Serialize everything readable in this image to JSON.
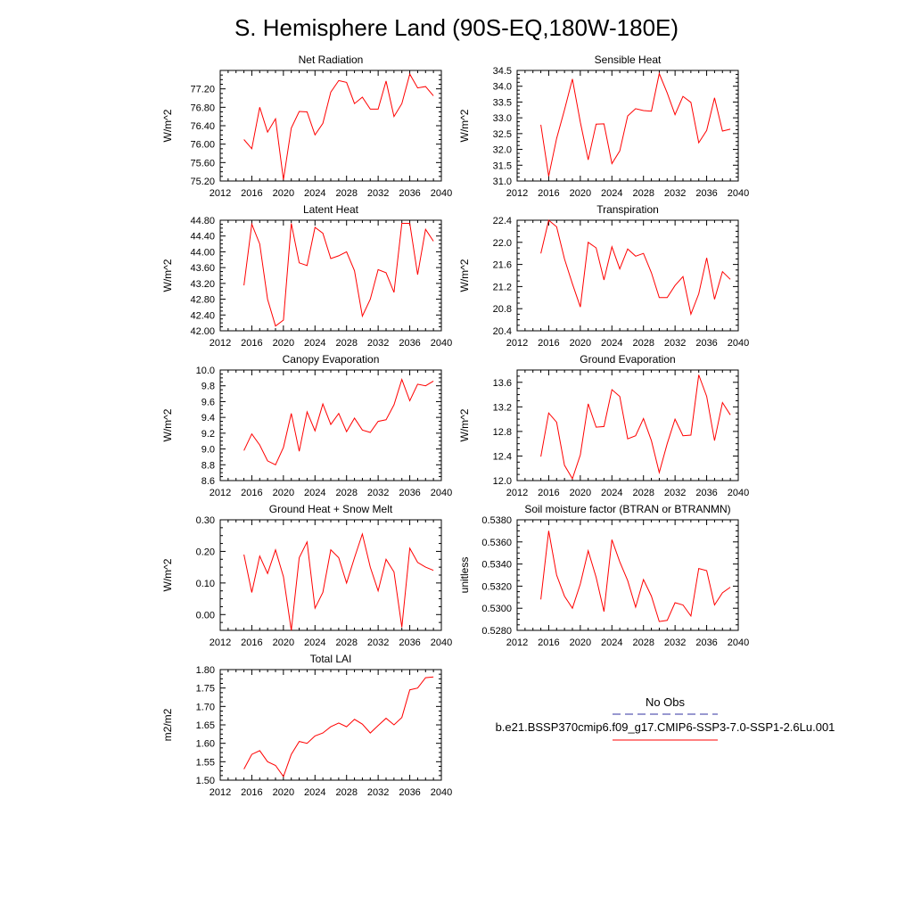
{
  "figure": {
    "title": "S. Hemisphere Land (90S-EQ,180W-180E)"
  },
  "legend": {
    "obs_label": "No Obs",
    "model_label": "b.e21.BSSP370cmip6.f09_g17.CMIP6-SSP3-7.0-SSP1-2.6Lu.001",
    "obs_color": "#3030a0",
    "model_color": "#ff0000"
  },
  "chart_data": [
    {
      "type": "line",
      "title": "Net Radiation",
      "ylabel": "W/m^2",
      "xlim": [
        2012,
        2040
      ],
      "xticks": [
        "2012",
        "2016",
        "2020",
        "2024",
        "2028",
        "2032",
        "2036",
        "2040"
      ],
      "ylim": [
        75.2,
        77.6
      ],
      "yticks": [
        "75.20",
        "75.60",
        "76.00",
        "76.40",
        "76.80",
        "77.20"
      ],
      "x": [
        2015,
        2016,
        2017,
        2018,
        2019,
        2020,
        2021,
        2022,
        2023,
        2024,
        2025,
        2026,
        2027,
        2028,
        2029,
        2030,
        2031,
        2032,
        2033,
        2034,
        2035,
        2036,
        2037,
        2038,
        2039
      ],
      "values": [
        76.1,
        75.9,
        76.8,
        76.26,
        76.55,
        75.23,
        76.35,
        76.71,
        76.7,
        76.2,
        76.45,
        77.13,
        77.38,
        77.34,
        76.88,
        77.02,
        76.76,
        76.76,
        77.37,
        76.6,
        76.88,
        77.52,
        77.22,
        77.25,
        77.05
      ]
    },
    {
      "type": "line",
      "title": "Sensible Heat",
      "ylabel": "W/m^2",
      "xlim": [
        2012,
        2040
      ],
      "xticks": [
        "2012",
        "2016",
        "2020",
        "2024",
        "2028",
        "2032",
        "2036",
        "2040"
      ],
      "ylim": [
        31.0,
        34.5
      ],
      "yticks": [
        "31.0",
        "31.5",
        "32.0",
        "32.5",
        "33.0",
        "33.5",
        "34.0",
        "34.5"
      ],
      "x": [
        2015,
        2016,
        2017,
        2018,
        2019,
        2020,
        2021,
        2022,
        2023,
        2024,
        2025,
        2026,
        2027,
        2028,
        2029,
        2030,
        2031,
        2032,
        2033,
        2034,
        2035,
        2036,
        2037,
        2038,
        2039
      ],
      "values": [
        32.78,
        31.15,
        32.35,
        33.25,
        34.23,
        32.86,
        31.67,
        32.8,
        32.81,
        31.55,
        31.95,
        33.06,
        33.29,
        33.23,
        33.21,
        34.4,
        33.79,
        33.1,
        33.68,
        33.49,
        32.21,
        32.6,
        33.63,
        32.58,
        32.64
      ]
    },
    {
      "type": "line",
      "title": "Latent Heat",
      "ylabel": "W/m^2",
      "xlim": [
        2012,
        2040
      ],
      "xticks": [
        "2012",
        "2016",
        "2020",
        "2024",
        "2028",
        "2032",
        "2036",
        "2040"
      ],
      "ylim": [
        42.0,
        44.8
      ],
      "yticks": [
        "42.00",
        "42.40",
        "42.80",
        "43.20",
        "43.60",
        "44.00",
        "44.40",
        "44.80"
      ],
      "x": [
        2015,
        2016,
        2017,
        2018,
        2019,
        2020,
        2021,
        2022,
        2023,
        2024,
        2025,
        2026,
        2027,
        2028,
        2029,
        2030,
        2031,
        2032,
        2033,
        2034,
        2035,
        2036,
        2037,
        2038,
        2039
      ],
      "values": [
        43.15,
        44.7,
        44.2,
        42.8,
        42.12,
        42.27,
        44.72,
        43.72,
        43.65,
        44.62,
        44.47,
        43.83,
        43.9,
        44.0,
        43.52,
        42.37,
        42.8,
        43.55,
        43.47,
        42.97,
        44.72,
        44.72,
        43.42,
        44.57,
        44.27
      ]
    },
    {
      "type": "line",
      "title": "Transpiration",
      "ylabel": "W/m^2",
      "xlim": [
        2012,
        2040
      ],
      "xticks": [
        "2012",
        "2016",
        "2020",
        "2024",
        "2028",
        "2032",
        "2036",
        "2040"
      ],
      "ylim": [
        20.4,
        22.4
      ],
      "yticks": [
        "20.4",
        "20.8",
        "21.2",
        "21.6",
        "22.0",
        "22.4"
      ],
      "x": [
        2015,
        2016,
        2017,
        2018,
        2019,
        2020,
        2021,
        2022,
        2023,
        2024,
        2025,
        2026,
        2027,
        2028,
        2029,
        2030,
        2031,
        2032,
        2033,
        2034,
        2035,
        2036,
        2037,
        2038,
        2039
      ],
      "values": [
        21.8,
        22.4,
        22.28,
        21.7,
        21.25,
        20.83,
        22.0,
        21.9,
        21.32,
        21.92,
        21.52,
        21.88,
        21.75,
        21.8,
        21.45,
        21.0,
        21.0,
        21.22,
        21.38,
        20.7,
        21.07,
        21.72,
        20.97,
        21.47,
        21.33
      ]
    },
    {
      "type": "line",
      "title": "Canopy Evaporation",
      "ylabel": "W/m^2",
      "xlim": [
        2012,
        2040
      ],
      "xticks": [
        "2012",
        "2016",
        "2020",
        "2024",
        "2028",
        "2032",
        "2036",
        "2040"
      ],
      "ylim": [
        8.6,
        10.0
      ],
      "yticks": [
        "8.6",
        "8.8",
        "9.0",
        "9.2",
        "9.4",
        "9.6",
        "9.8",
        "10.0"
      ],
      "x": [
        2015,
        2016,
        2017,
        2018,
        2019,
        2020,
        2021,
        2022,
        2023,
        2024,
        2025,
        2026,
        2027,
        2028,
        2029,
        2030,
        2031,
        2032,
        2033,
        2034,
        2035,
        2036,
        2037,
        2038,
        2039
      ],
      "values": [
        8.98,
        9.19,
        9.05,
        8.85,
        8.8,
        9.02,
        9.45,
        8.97,
        9.47,
        9.23,
        9.57,
        9.31,
        9.45,
        9.22,
        9.39,
        9.24,
        9.21,
        9.35,
        9.37,
        9.56,
        9.88,
        9.61,
        9.82,
        9.8,
        9.86
      ]
    },
    {
      "type": "line",
      "title": "Ground Evaporation",
      "ylabel": "W/m^2",
      "xlim": [
        2012,
        2040
      ],
      "xticks": [
        "2012",
        "2016",
        "2020",
        "2024",
        "2028",
        "2032",
        "2036",
        "2040"
      ],
      "ylim": [
        12.0,
        13.8
      ],
      "yticks": [
        "12.0",
        "12.4",
        "12.8",
        "13.2",
        "13.6"
      ],
      "x": [
        2015,
        2016,
        2017,
        2018,
        2019,
        2020,
        2021,
        2022,
        2023,
        2024,
        2025,
        2026,
        2027,
        2028,
        2029,
        2030,
        2031,
        2032,
        2033,
        2034,
        2035,
        2036,
        2037,
        2038,
        2039
      ],
      "values": [
        12.39,
        13.1,
        12.95,
        12.25,
        12.03,
        12.42,
        13.25,
        12.87,
        12.88,
        13.48,
        13.37,
        12.68,
        12.73,
        13.01,
        12.65,
        12.13,
        12.6,
        13.0,
        12.73,
        12.74,
        13.72,
        13.37,
        12.65,
        13.27,
        13.07
      ]
    },
    {
      "type": "line",
      "title": "Ground Heat + Snow Melt",
      "ylabel": "W/m^2",
      "xlim": [
        2012,
        2040
      ],
      "xticks": [
        "2012",
        "2016",
        "2020",
        "2024",
        "2028",
        "2032",
        "2036",
        "2040"
      ],
      "ylim": [
        -0.05,
        0.3
      ],
      "yticks": [
        "0.00",
        "0.10",
        "0.20",
        "0.30"
      ],
      "ytick_values": [
        0.0,
        0.1,
        0.2,
        0.3
      ],
      "x": [
        2015,
        2016,
        2017,
        2018,
        2019,
        2020,
        2021,
        2022,
        2023,
        2024,
        2025,
        2026,
        2027,
        2028,
        2029,
        2030,
        2031,
        2032,
        2033,
        2034,
        2035,
        2036,
        2037,
        2038,
        2039
      ],
      "values": [
        0.19,
        0.07,
        0.185,
        0.13,
        0.205,
        0.12,
        -0.05,
        0.18,
        0.23,
        0.02,
        0.07,
        0.205,
        0.18,
        0.1,
        0.18,
        0.255,
        0.15,
        0.075,
        0.175,
        0.135,
        -0.04,
        0.21,
        0.165,
        0.15,
        0.14
      ]
    },
    {
      "type": "line",
      "title": "Soil moisture factor (BTRAN or BTRANMN)",
      "ylabel": "unitless",
      "xlim": [
        2012,
        2040
      ],
      "xticks": [
        "2012",
        "2016",
        "2020",
        "2024",
        "2028",
        "2032",
        "2036",
        "2040"
      ],
      "ylim": [
        0.528,
        0.538
      ],
      "yticks": [
        "0.5280",
        "0.5300",
        "0.5320",
        "0.5340",
        "0.5360",
        "0.5380"
      ],
      "x": [
        2015,
        2016,
        2017,
        2018,
        2019,
        2020,
        2021,
        2022,
        2023,
        2024,
        2025,
        2026,
        2027,
        2028,
        2029,
        2030,
        2031,
        2032,
        2033,
        2034,
        2035,
        2036,
        2037,
        2038,
        2039
      ],
      "values": [
        0.5308,
        0.537,
        0.533,
        0.5311,
        0.53,
        0.5322,
        0.5352,
        0.5328,
        0.5297,
        0.5362,
        0.5342,
        0.5325,
        0.5301,
        0.5326,
        0.5311,
        0.5288,
        0.5289,
        0.5305,
        0.5303,
        0.5293,
        0.5336,
        0.5334,
        0.5303,
        0.5314,
        0.5319
      ]
    },
    {
      "type": "line",
      "title": "Total LAI",
      "ylabel": "m2/m2",
      "xlim": [
        2012,
        2040
      ],
      "xticks": [
        "2012",
        "2016",
        "2020",
        "2024",
        "2028",
        "2032",
        "2036",
        "2040"
      ],
      "ylim": [
        1.5,
        1.8
      ],
      "yticks": [
        "1.50",
        "1.55",
        "1.60",
        "1.65",
        "1.70",
        "1.75",
        "1.80"
      ],
      "x": [
        2015,
        2016,
        2017,
        2018,
        2019,
        2020,
        2021,
        2022,
        2023,
        2024,
        2025,
        2026,
        2027,
        2028,
        2029,
        2030,
        2031,
        2032,
        2033,
        2034,
        2035,
        2036,
        2037,
        2038,
        2039
      ],
      "values": [
        1.53,
        1.57,
        1.58,
        1.55,
        1.54,
        1.51,
        1.57,
        1.605,
        1.6,
        1.62,
        1.628,
        1.645,
        1.655,
        1.645,
        1.665,
        1.652,
        1.628,
        1.648,
        1.668,
        1.65,
        1.67,
        1.745,
        1.75,
        1.778,
        1.78
      ]
    }
  ]
}
